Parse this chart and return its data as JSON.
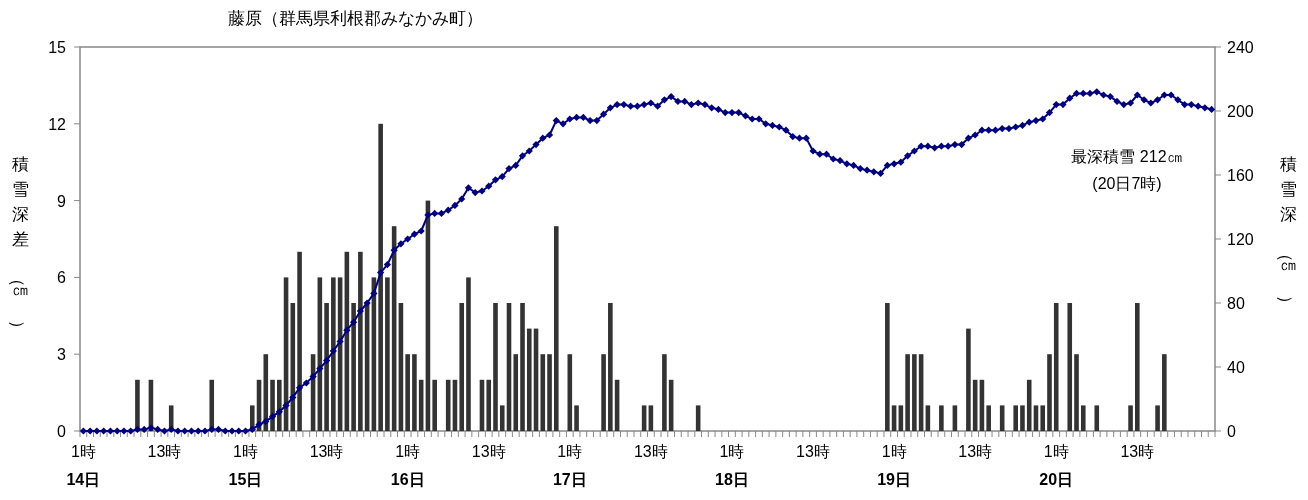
{
  "chart_data": {
    "type": "bar",
    "title": "藤原（群馬県利根郡みなかみ町）",
    "ylabel": "積雪深差（㎝）",
    "y2label": "積雪深（㎝）",
    "annotations": [
      "最深積雪 212㎝\n(20日7時)"
    ],
    "categories": [
      "1時\n14日",
      null,
      null,
      null,
      null,
      null,
      null,
      null,
      null,
      null,
      null,
      null,
      "13時",
      null,
      null,
      null,
      null,
      null,
      null,
      null,
      null,
      null,
      null,
      null,
      "1時\n15日",
      null,
      null,
      null,
      null,
      null,
      null,
      null,
      null,
      null,
      null,
      null,
      "13時",
      null,
      null,
      null,
      null,
      null,
      null,
      null,
      null,
      null,
      null,
      null,
      "1時\n16日",
      null,
      null,
      null,
      null,
      null,
      null,
      null,
      null,
      null,
      null,
      null,
      "13時",
      null,
      null,
      null,
      null,
      null,
      null,
      null,
      null,
      null,
      null,
      null,
      "1時\n17日",
      null,
      null,
      null,
      null,
      null,
      null,
      null,
      null,
      null,
      null,
      null,
      "13時",
      null,
      null,
      null,
      null,
      null,
      null,
      null,
      null,
      null,
      null,
      null,
      "1時\n18日",
      null,
      null,
      null,
      null,
      null,
      null,
      null,
      null,
      null,
      null,
      null,
      "13時",
      null,
      null,
      null,
      null,
      null,
      null,
      null,
      null,
      null,
      null,
      null,
      "1時\n19日",
      null,
      null,
      null,
      null,
      null,
      null,
      null,
      null,
      null,
      null,
      null,
      "13時",
      null,
      null,
      null,
      null,
      null,
      null,
      null,
      null,
      null,
      null,
      null,
      "1時\n20日",
      null,
      null,
      null,
      null,
      null,
      null,
      null,
      null,
      null,
      null,
      null,
      "13時",
      null,
      null,
      null,
      null,
      null,
      null,
      null,
      null,
      null,
      null,
      null
    ],
    "series": [
      {
        "color": "#333333",
        "values": [
          0,
          0,
          0,
          0,
          0,
          0,
          0,
          0,
          2,
          0,
          2,
          0,
          0,
          1,
          0,
          0,
          0,
          0,
          0,
          2,
          0,
          0,
          0,
          0,
          0,
          1,
          2,
          3,
          2,
          2,
          6,
          5,
          7,
          0,
          3,
          6,
          5,
          6,
          6,
          7,
          5,
          7,
          5,
          6,
          12,
          6,
          8,
          5,
          3,
          3,
          2,
          9,
          2,
          0,
          2,
          2,
          5,
          6,
          0,
          2,
          2,
          5,
          1,
          5,
          3,
          5,
          4,
          4,
          3,
          3,
          8,
          0,
          3,
          1,
          0,
          0,
          0,
          3,
          5,
          2,
          0,
          0,
          0,
          1,
          1,
          0,
          3,
          2,
          0,
          0,
          0,
          1,
          0,
          0,
          0,
          0,
          0,
          0,
          0,
          0,
          0,
          0,
          0,
          0,
          0,
          0,
          0,
          0,
          0,
          0,
          0,
          0,
          0,
          0,
          0,
          0,
          0,
          0,
          0,
          5,
          1,
          1,
          3,
          3,
          3,
          1,
          0,
          1,
          0,
          1,
          0,
          4,
          2,
          2,
          1,
          0,
          1,
          0,
          1,
          1,
          2,
          1,
          1,
          3,
          5,
          0,
          5,
          3,
          1,
          0,
          1,
          0,
          0,
          0,
          0,
          1,
          5,
          0,
          0,
          1,
          3,
          0,
          0,
          0,
          0,
          0,
          0,
          0
        ]
      },
      {
        "type": "line",
        "axis": "y2",
        "color": "#000080",
        "values": [
          0,
          0,
          0,
          0,
          0,
          0,
          0,
          0,
          1,
          1,
          2,
          1,
          0,
          1,
          0,
          0,
          0,
          0,
          0,
          1,
          1,
          0,
          0,
          0,
          0,
          1,
          4,
          6,
          9,
          12,
          16,
          21,
          27,
          30,
          34,
          39,
          44,
          50,
          56,
          63,
          68,
          75,
          80,
          86,
          99,
          104,
          113,
          117,
          120,
          123,
          125,
          135,
          136,
          136,
          138,
          141,
          145,
          152,
          149,
          150,
          153,
          157,
          159,
          164,
          166,
          172,
          175,
          179,
          183,
          185,
          194,
          192,
          195,
          196,
          196,
          194,
          194,
          198,
          202,
          204,
          204,
          203,
          203,
          204,
          205,
          203,
          207,
          209,
          206,
          206,
          204,
          205,
          204,
          202,
          201,
          199,
          199,
          199,
          197,
          195,
          195,
          192,
          191,
          190,
          188,
          184,
          183,
          183,
          175,
          173,
          173,
          170,
          169,
          167,
          166,
          164,
          163,
          162,
          161,
          166,
          167,
          168,
          172,
          175,
          178,
          178,
          177,
          178,
          178,
          179,
          179,
          183,
          185,
          188,
          188,
          188,
          189,
          189,
          190,
          191,
          193,
          194,
          195,
          199,
          204,
          204,
          208,
          211,
          211,
          211,
          212,
          210,
          209,
          206,
          204,
          205,
          210,
          207,
          205,
          207,
          210,
          210,
          207,
          204,
          204,
          203,
          202,
          201
        ]
      }
    ],
    "ylim": [
      0,
      15
    ],
    "yticks": [
      0,
      3,
      6,
      9,
      12,
      15
    ],
    "y2lim": [
      0,
      240
    ],
    "y2ticks": [
      0,
      40,
      80,
      120,
      160,
      200,
      240
    ],
    "marker": "diamond",
    "line_style": "solid"
  }
}
